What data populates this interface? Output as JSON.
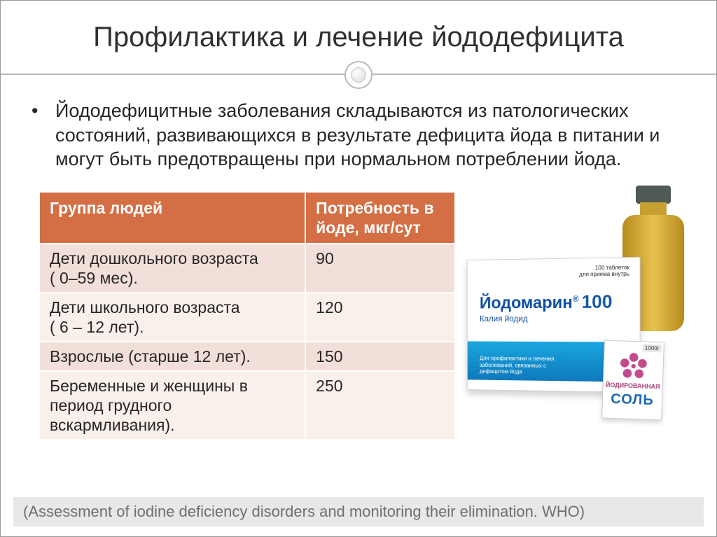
{
  "title": "Профилактика и лечение йододефицита",
  "bullet": "Йододефицитные заболевания складываются из патологических состояний, развивающихся в результате дефицита йода в питании и могут быть предотвращены при нормальном потреблении йода.",
  "table": {
    "header_bg": "#d46f45",
    "header_fg": "#ffffff",
    "row_odd_bg": "#f2dfd9",
    "row_even_bg": "#f9efeb",
    "border_color": "#ffffff",
    "font_size_pt": 17,
    "columns": [
      "Группа людей",
      "Потребность в йоде, мкг/сут"
    ],
    "rows": [
      [
        "Дети дошкольного возраста\n ( 0–59 мес).",
        "90"
      ],
      [
        "Дети школьного возраста\n ( 6 – 12 лет).",
        "120"
      ],
      [
        "Взрослые (старше 12 лет).",
        "150"
      ],
      [
        "Беременные и женщины в период грудного вскармливания).",
        "250"
      ]
    ]
  },
  "product_box": {
    "brand": "Йодомарин",
    "reg": "®",
    "number": "100",
    "sub": "Калия йодид",
    "count": "100 таблеток\nдля приема внутрь",
    "blurb": "Для профилактики и лечения\nзаболеваний, связанных с\nдефицитом йода",
    "stripe_color_top": "#1aa6df",
    "stripe_color_bottom": "#0f79bd",
    "brand_color": "#0f4fa1"
  },
  "salt_pack": {
    "tag": "1000г",
    "line1": "ЙОДИРОВАННАЯ",
    "line2": "СОЛЬ",
    "flower_color": "#c24a8f",
    "line2_color": "#1b66b0"
  },
  "bottle": {
    "body_color": "#e7c34e",
    "cap_color": "#4f5a55"
  },
  "footer": "(Assessment of iodine deficiency disorders and monitoring their elimination. WHO)",
  "colors": {
    "title_rule": "#b9b9b9",
    "text": "#262626",
    "footer_bg": "#e8e8e8",
    "footer_fg": "#6f6f6f"
  },
  "title_fontsize_pt": 30,
  "body_fontsize_pt": 20
}
